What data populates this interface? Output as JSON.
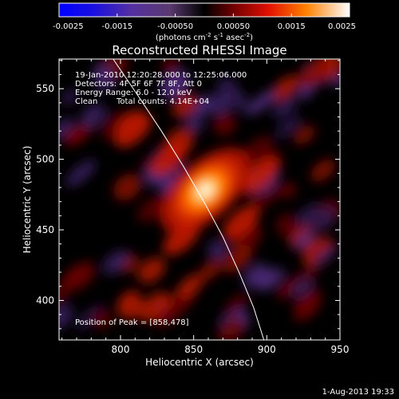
{
  "chart_data": {
    "type": "heatmap",
    "title": "Reconstructed RHESSI Image",
    "xlabel": "Heliocentric X (arcsec)",
    "ylabel": "Heliocentric Y (arcsec)",
    "xlim": [
      758,
      950
    ],
    "ylim": [
      372,
      571
    ],
    "x_ticks": [
      800,
      850,
      900,
      950
    ],
    "y_ticks": [
      400,
      450,
      500,
      550
    ],
    "colorbar": {
      "range": [
        -0.0025,
        0.0025
      ],
      "ticks": [
        "-0.0025",
        "-0.0015",
        "-0.00050",
        "0.00050",
        "0.0015",
        "0.0025"
      ],
      "unit_main": "(photons cm",
      "unit_exp1": "-2",
      "unit_mid": " s",
      "unit_exp2": "-1",
      "unit_mid2": " asec",
      "unit_exp3": "-2",
      "unit_end": ")"
    },
    "annotations": {
      "time_range": "19-Jan-2010 12:20:28.000 to 12:25:06.000",
      "detectors": "Detectors: 4F 5F 6F 7F 8F, Att 0",
      "energy": "Energy Range: 6.0 - 12.0 keV",
      "clean_label": "Clean",
      "total_counts": "Total counts: 4.14E+04",
      "peak": "Position of Peak = [858,478]"
    },
    "peak": [
      858,
      478
    ],
    "peak_value": 0.0025,
    "limb_curve": [
      [
        795,
        571
      ],
      [
        812,
        545
      ],
      [
        828,
        520
      ],
      [
        843,
        495
      ],
      [
        857,
        470
      ],
      [
        870,
        445
      ],
      [
        881,
        420
      ],
      [
        891,
        395
      ],
      [
        898,
        372
      ]
    ]
  },
  "footer": {
    "timestamp": "1-Aug-2013 19:33"
  }
}
